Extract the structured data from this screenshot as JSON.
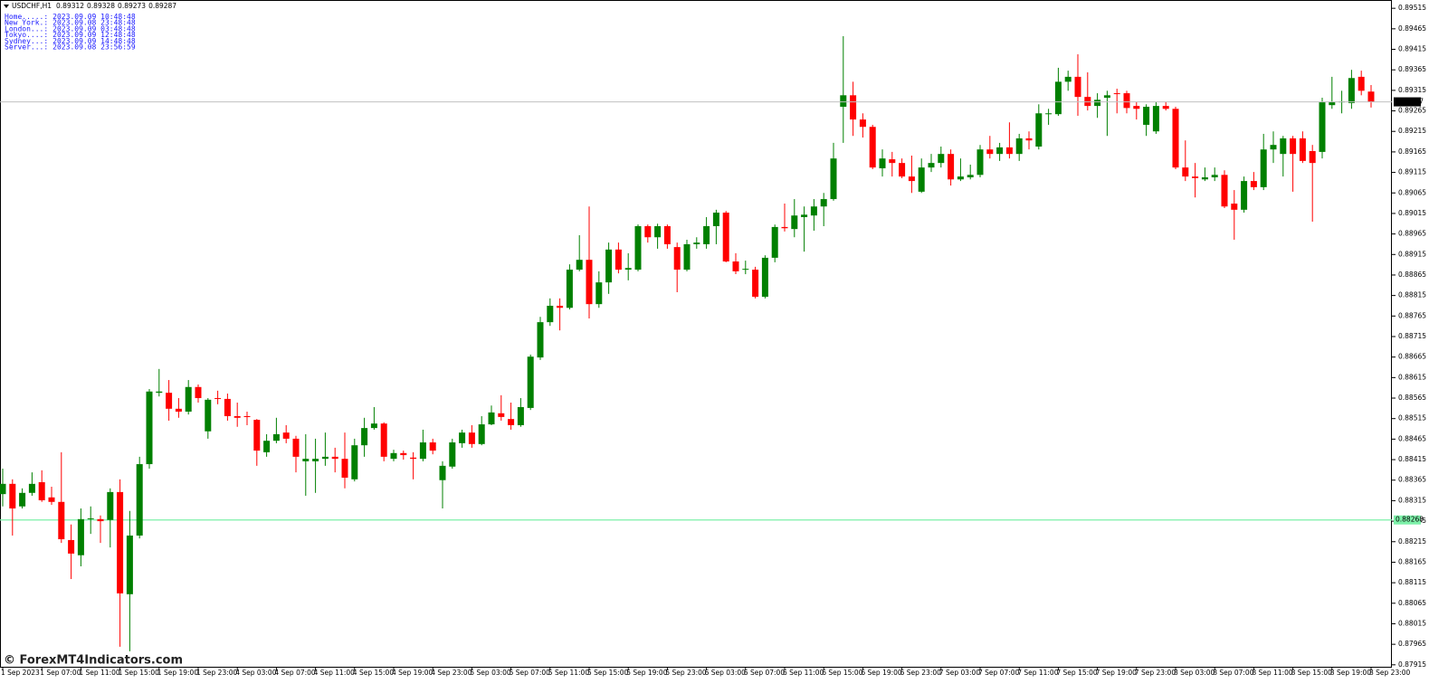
{
  "chart_data": {
    "type": "candlestick",
    "symbol": "USDCHF,H1",
    "clocks": [
      {
        "label": "Home.....:",
        "time": "2023.09.09 10:48:48"
      },
      {
        "label": "New York.:",
        "time": "2023.09.08 23:48:48"
      },
      {
        "label": "London...:",
        "time": "2023.09.09 03:48:48"
      },
      {
        "label": "Tokyo....:",
        "time": "2023.09.09 12:48:48"
      },
      {
        "label": "Sydney...:",
        "time": "2023.09.09 14:48:48"
      },
      {
        "label": "Server...:",
        "time": "2023.09.08 23:56:59"
      }
    ],
    "watermark": "© ForexMT4Indicators.com",
    "up_color": "#008000",
    "down_color": "#ff0000",
    "level": 0.88268,
    "level_color": "#7cf0a8",
    "grid": false,
    "ylim": [
      0.87908,
      0.89533
    ],
    "yticks": [
      0.89515,
      0.89465,
      0.89415,
      0.89365,
      0.89315,
      0.89265,
      0.89215,
      0.89165,
      0.89115,
      0.89065,
      0.89015,
      0.88965,
      0.88915,
      0.88865,
      0.88815,
      0.88765,
      0.88715,
      0.88665,
      0.88615,
      0.88565,
      0.88515,
      0.88465,
      0.88415,
      0.88365,
      0.88315,
      0.88265,
      0.88215,
      0.88165,
      0.88115,
      0.88065,
      0.88015,
      0.87965,
      0.87915
    ],
    "categories": [
      "1 Sep 2023",
      null,
      null,
      null,
      "1 Sep 07:00",
      null,
      null,
      null,
      "1 Sep 11:00",
      null,
      null,
      null,
      "1 Sep 15:00",
      null,
      null,
      null,
      "1 Sep 19:00",
      null,
      null,
      null,
      "1 Sep 23:00",
      null,
      null,
      null,
      "4 Sep 03:00",
      null,
      null,
      null,
      "4 Sep 07:00",
      null,
      null,
      null,
      "4 Sep 11:00",
      null,
      null,
      null,
      "4 Sep 15:00",
      null,
      null,
      null,
      "4 Sep 19:00",
      null,
      null,
      null,
      "4 Sep 23:00",
      null,
      null,
      null,
      "5 Sep 03:00",
      null,
      null,
      null,
      "5 Sep 07:00",
      null,
      null,
      null,
      "5 Sep 11:00",
      null,
      null,
      null,
      "5 Sep 15:00",
      null,
      null,
      null,
      "5 Sep 19:00",
      null,
      null,
      null,
      "5 Sep 23:00",
      null,
      null,
      null,
      "6 Sep 03:00",
      null,
      null,
      null,
      "6 Sep 07:00",
      null,
      null,
      null,
      "6 Sep 11:00",
      null,
      null,
      null,
      "6 Sep 15:00",
      null,
      null,
      null,
      "6 Sep 19:00",
      null,
      null,
      null,
      "6 Sep 23:00",
      null,
      null,
      null,
      "7 Sep 03:00",
      null,
      null,
      null,
      "7 Sep 07:00",
      null,
      null,
      null,
      "7 Sep 11:00",
      null,
      null,
      null,
      "7 Sep 15:00",
      null,
      null,
      null,
      "7 Sep 19:00",
      null,
      null,
      null,
      "7 Sep 23:00",
      null,
      null,
      null,
      "8 Sep 03:00",
      null,
      null,
      null,
      "8 Sep 07:00",
      null,
      null,
      null,
      "8 Sep 11:00",
      null,
      null,
      null,
      "8 Sep 15:00",
      null,
      null,
      null,
      "8 Sep 19:00",
      null,
      null,
      null,
      "8 Sep 23:00"
    ],
    "open": [
      0.88331,
      0.88356,
      0.88301,
      0.88334,
      0.8836,
      0.88323,
      0.88312,
      0.88219,
      0.88182,
      0.8827,
      0.8827,
      0.88268,
      0.88336,
      0.88087,
      0.8823,
      0.88404,
      0.88578,
      0.88578,
      0.88539,
      0.88532,
      0.88592,
      0.88484,
      0.88565,
      0.88563,
      0.88521,
      0.88521,
      0.88512,
      0.88433,
      0.88461,
      0.88481,
      0.88466,
      0.88411,
      0.88411,
      0.88417,
      0.88422,
      0.88417,
      0.88367,
      0.8845,
      0.88492,
      0.88503,
      0.88417,
      0.88431,
      0.8842,
      0.88417,
      0.88457,
      0.88365,
      0.88398,
      0.88455,
      0.88481,
      0.88453,
      0.88501,
      0.88528,
      0.88514,
      0.88499,
      0.88541,
      0.88664,
      0.8875,
      0.8879,
      0.88785,
      0.88878,
      0.88902,
      0.88794,
      0.88847,
      0.88927,
      0.88878,
      0.88878,
      0.88984,
      0.88957,
      0.88984,
      0.88933,
      0.88878,
      0.8894,
      0.8894,
      0.88984,
      0.89017,
      0.88898,
      0.88878,
      0.88878,
      0.88812,
      0.88907,
      0.88982,
      0.88977,
      0.89006,
      0.8901,
      0.89032,
      0.8905,
      0.89275,
      0.89303,
      0.89244,
      0.89226,
      0.89125,
      0.89147,
      0.89138,
      0.89105,
      0.89068,
      0.89127,
      0.89138,
      0.8916,
      0.89098,
      0.89103,
      0.89109,
      0.89171,
      0.8916,
      0.89176,
      0.8916,
      0.89198,
      0.89178,
      0.89257,
      0.89257,
      0.89336,
      0.89348,
      0.89299,
      0.89277,
      0.89297,
      0.89308,
      0.89308,
      0.89277,
      0.89231,
      0.89215,
      0.89277,
      0.8927,
      0.89127,
      0.89105,
      0.89098,
      0.89103,
      0.89109,
      0.89039,
      0.89024,
      0.89094,
      0.89079,
      0.89171,
      0.8916,
      0.89198,
      0.89198,
      0.89167,
      0.89165,
      0.89279,
      0.89286,
      0.89284,
      0.89348,
      0.89312
    ],
    "high": [
      0.88393,
      0.88367,
      0.88345,
      0.88384,
      0.88389,
      0.88349,
      0.88433,
      0.88257,
      0.88296,
      0.88301,
      0.88279,
      0.88345,
      0.88367,
      0.8829,
      0.88422,
      0.88587,
      0.88636,
      0.88609,
      0.88565,
      0.88609,
      0.88598,
      0.88565,
      0.88583,
      0.88576,
      0.88554,
      0.88532,
      0.88514,
      0.88477,
      0.88517,
      0.88499,
      0.88473,
      0.88477,
      0.88466,
      0.88481,
      0.88444,
      0.88481,
      0.88466,
      0.88517,
      0.88543,
      0.88506,
      0.88439,
      0.88437,
      0.88433,
      0.88488,
      0.88466,
      0.88411,
      0.88466,
      0.88488,
      0.88499,
      0.88521,
      0.88547,
      0.88572,
      0.88554,
      0.88565,
      0.88671,
      0.88763,
      0.88808,
      0.88808,
      0.88891,
      0.88962,
      0.89032,
      0.88874,
      0.88944,
      0.88944,
      0.88918,
      0.88988,
      0.88988,
      0.8899,
      0.88988,
      0.88944,
      0.88951,
      0.88957,
      0.89006,
      0.89024,
      0.89021,
      0.88918,
      0.889,
      0.88885,
      0.88913,
      0.88988,
      0.89039,
      0.8905,
      0.89032,
      0.8905,
      0.89065,
      0.89187,
      0.89447,
      0.89336,
      0.89259,
      0.89231,
      0.89171,
      0.89165,
      0.89149,
      0.89156,
      0.89149,
      0.8916,
      0.89178,
      0.89171,
      0.89149,
      0.89134,
      0.89182,
      0.89204,
      0.89187,
      0.89237,
      0.89209,
      0.89215,
      0.89281,
      0.8927,
      0.8937,
      0.89363,
      0.89403,
      0.89359,
      0.89308,
      0.89314,
      0.89319,
      0.89314,
      0.89286,
      0.89281,
      0.89286,
      0.89286,
      0.89275,
      0.89193,
      0.89138,
      0.89127,
      0.89127,
      0.8912,
      0.89072,
      0.89105,
      0.89116,
      0.89209,
      0.89215,
      0.89204,
      0.89204,
      0.89215,
      0.89182,
      0.89297,
      0.89348,
      0.89314,
      0.89365,
      0.89363,
      0.89328
    ],
    "low": [
      0.88301,
      0.8823,
      0.88296,
      0.88327,
      0.88312,
      0.88305,
      0.88212,
      0.88124,
      0.88155,
      0.88234,
      0.88212,
      0.88201,
      0.87959,
      0.87948,
      0.88223,
      0.88393,
      0.88569,
      0.8851,
      0.88517,
      0.88525,
      0.88554,
      0.88466,
      0.8855,
      0.8851,
      0.88495,
      0.88499,
      0.884,
      0.88422,
      0.88455,
      0.88455,
      0.88384,
      0.88327,
      0.88334,
      0.884,
      0.88384,
      0.88345,
      0.88362,
      0.88422,
      0.88488,
      0.88411,
      0.88411,
      0.88415,
      0.88367,
      0.88411,
      0.88428,
      0.88296,
      0.88393,
      0.88444,
      0.88444,
      0.8845,
      0.88499,
      0.8851,
      0.88488,
      0.88495,
      0.88536,
      0.88658,
      0.88741,
      0.8873,
      0.88781,
      0.88874,
      0.88759,
      0.88785,
      0.88819,
      0.88869,
      0.88852,
      0.88874,
      0.88944,
      0.88929,
      0.88929,
      0.88823,
      0.88874,
      0.88929,
      0.88929,
      0.8894,
      0.88896,
      0.88867,
      0.88867,
      0.88808,
      0.88808,
      0.88896,
      0.88971,
      0.88957,
      0.88922,
      0.88973,
      0.88984,
      0.89046,
      0.89187,
      0.89204,
      0.892,
      0.89123,
      0.89105,
      0.89105,
      0.89101,
      0.89065,
      0.89065,
      0.89116,
      0.89127,
      0.89083,
      0.89094,
      0.89098,
      0.89103,
      0.89149,
      0.89143,
      0.89149,
      0.89143,
      0.89171,
      0.89171,
      0.89231,
      0.89253,
      0.89314,
      0.89253,
      0.89266,
      0.89248,
      0.89204,
      0.89259,
      0.89259,
      0.89244,
      0.89204,
      0.89209,
      0.89266,
      0.89123,
      0.89094,
      0.89054,
      0.89094,
      0.89094,
      0.89028,
      0.88951,
      0.89017,
      0.89072,
      0.89072,
      0.89138,
      0.89105,
      0.89068,
      0.89138,
      0.88995,
      0.89149,
      0.8927,
      0.89259,
      0.8927,
      0.89303,
      0.89273
    ],
    "close": [
      0.88356,
      0.88296,
      0.88334,
      0.88356,
      0.88316,
      0.88312,
      0.88221,
      0.88186,
      0.8827,
      0.88272,
      0.88265,
      0.88336,
      0.88089,
      0.8823,
      0.88404,
      0.88581,
      0.88581,
      0.88539,
      0.88532,
      0.88592,
      0.88565,
      0.88561,
      0.88563,
      0.88521,
      0.88517,
      0.88519,
      0.88437,
      0.88461,
      0.88477,
      0.88466,
      0.88422,
      0.88417,
      0.88417,
      0.88422,
      0.88417,
      0.88371,
      0.8845,
      0.88492,
      0.88503,
      0.88422,
      0.88431,
      0.88426,
      0.88417,
      0.88457,
      0.88437,
      0.884,
      0.88457,
      0.88481,
      0.88453,
      0.88501,
      0.8853,
      0.88519,
      0.88499,
      0.88543,
      0.88666,
      0.8875,
      0.8879,
      0.88785,
      0.88878,
      0.88902,
      0.88794,
      0.88847,
      0.88927,
      0.88878,
      0.88882,
      0.88984,
      0.88957,
      0.88984,
      0.8894,
      0.88878,
      0.8894,
      0.88944,
      0.88984,
      0.89017,
      0.88898,
      0.88874,
      0.8888,
      0.88812,
      0.88907,
      0.88982,
      0.88979,
      0.8901,
      0.89012,
      0.89032,
      0.8905,
      0.89149,
      0.89303,
      0.89244,
      0.89226,
      0.89127,
      0.89149,
      0.89138,
      0.89105,
      0.89094,
      0.89127,
      0.89138,
      0.8916,
      0.89098,
      0.89105,
      0.89109,
      0.89171,
      0.8916,
      0.89176,
      0.8916,
      0.89198,
      0.89193,
      0.89259,
      0.89259,
      0.89336,
      0.89348,
      0.89299,
      0.89277,
      0.89292,
      0.89303,
      0.89306,
      0.89272,
      0.8927,
      0.89275,
      0.89277,
      0.8927,
      0.89127,
      0.89105,
      0.89101,
      0.89103,
      0.89109,
      0.89032,
      0.89024,
      0.89094,
      0.89079,
      0.89171,
      0.89182,
      0.89198,
      0.8916,
      0.89143,
      0.89138,
      0.89286,
      0.89286,
      0.89288,
      0.89345,
      0.89314,
      0.89287
    ]
  }
}
